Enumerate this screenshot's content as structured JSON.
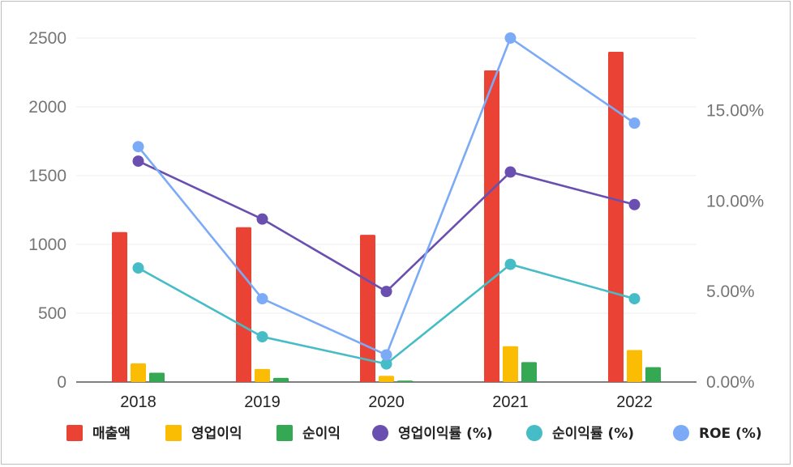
{
  "chart_data": {
    "type": "bar",
    "categories": [
      "2018",
      "2019",
      "2020",
      "2021",
      "2022"
    ],
    "bar_series": [
      {
        "name": "매출액",
        "color": "#EA4335",
        "values": [
          1090,
          1125,
          1070,
          2265,
          2400
        ]
      },
      {
        "name": "영업이익",
        "color": "#FBBC04",
        "values": [
          135,
          95,
          45,
          260,
          232
        ]
      },
      {
        "name": "순이익",
        "color": "#34A853",
        "values": [
          68,
          30,
          10,
          145,
          108
        ]
      }
    ],
    "line_series": [
      {
        "name": "영업이익률 (%)",
        "color": "#6A4FB0",
        "values": [
          12.2,
          9.0,
          5.0,
          11.6,
          9.8
        ]
      },
      {
        "name": "순이익률 (%)",
        "color": "#46BDC6",
        "values": [
          6.3,
          2.5,
          1.0,
          6.5,
          4.6
        ]
      },
      {
        "name": "ROE (%)",
        "color": "#7BAAF7",
        "values": [
          13.0,
          4.6,
          1.5,
          19.0,
          14.3
        ]
      }
    ],
    "y_left": {
      "ticks": [
        "0",
        "500",
        "1000",
        "1500",
        "2000",
        "2500"
      ],
      "min": 0,
      "max": 2500
    },
    "y_right": {
      "ticks": [
        "0.00%",
        "5.00%",
        "10.00%",
        "15.00%"
      ],
      "min": 0,
      "max": 19
    },
    "grid": true,
    "legend_position": "bottom"
  }
}
